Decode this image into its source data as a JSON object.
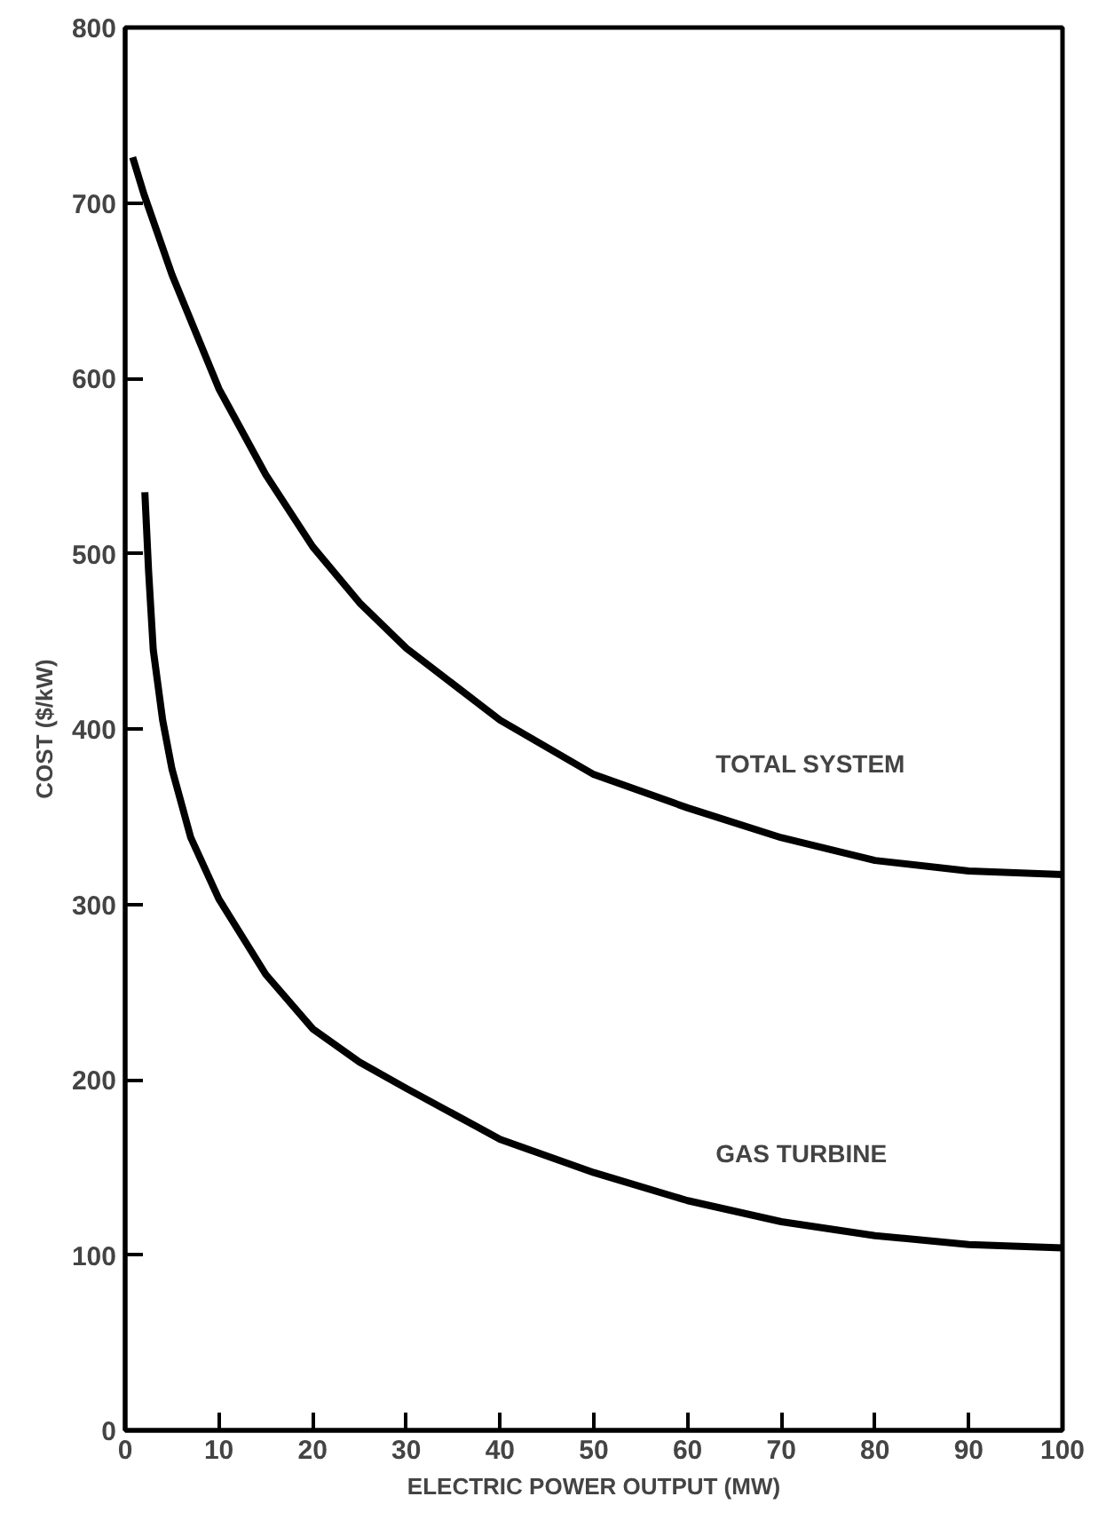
{
  "chart_data": {
    "type": "line",
    "xlabel": "ELECTRIC POWER OUTPUT (MW)",
    "ylabel": "COST ($/kW)",
    "xlim": [
      0,
      100
    ],
    "ylim": [
      0,
      800
    ],
    "xticks": [
      0,
      10,
      20,
      30,
      40,
      50,
      60,
      70,
      80,
      90,
      100
    ],
    "yticks": [
      0,
      100,
      200,
      300,
      400,
      500,
      600,
      700,
      800
    ],
    "grid": false,
    "marker": "none",
    "line_style": "solid",
    "series": [
      {
        "name": "TOTAL SYSTEM",
        "color": "#000000",
        "x": [
          0.8,
          2,
          5,
          10,
          15,
          20,
          25,
          30,
          40,
          50,
          60,
          70,
          80,
          90,
          100
        ],
        "values": [
          726,
          705,
          659,
          594,
          545,
          504,
          472,
          446,
          405,
          374,
          355,
          338,
          325,
          319,
          317
        ]
      },
      {
        "name": "GAS TURBINE",
        "color": "#000000",
        "x": [
          2.1,
          2.5,
          3,
          4,
          5,
          7,
          10,
          15,
          20,
          25,
          30,
          40,
          50,
          60,
          70,
          80,
          90,
          100
        ],
        "values": [
          535,
          490,
          445,
          405,
          377,
          338,
          303,
          260,
          229,
          210,
          195,
          166,
          147,
          131,
          119,
          111,
          106,
          104
        ]
      }
    ]
  }
}
